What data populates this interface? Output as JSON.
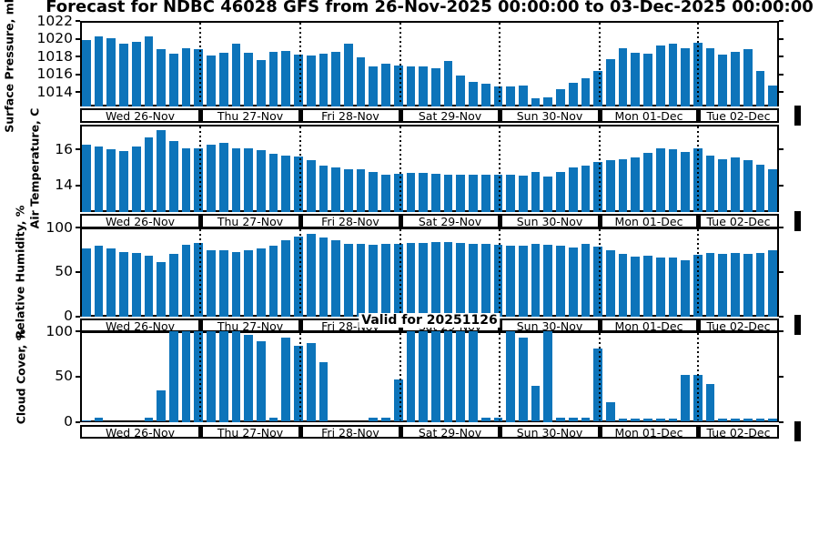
{
  "title": "Forecast for NDBC 46028 GFS from 26-Nov-2025 00:00:00 to 03-Dec-2025 00:00:00",
  "valid_label": "Valid for 20251126",
  "station": "NDBC 46028",
  "model": "GFS",
  "colors": {
    "bar": "#0d74ba",
    "axis": "#000000"
  },
  "day_labels": [
    "Wed 26-Nov",
    "Thu 27-Nov",
    "Fri 28-Nov",
    "Sat 29-Nov",
    "Sun 30-Nov",
    "Mon 01-Dec",
    "Tue 02-Dec"
  ],
  "chart_data": [
    {
      "type": "bar",
      "ylabel": "Surface Pressure, mb",
      "yticks": [
        1014,
        1016,
        1018,
        1020,
        1022
      ],
      "ylim": [
        1012.4,
        1022
      ],
      "categories": [
        "Wed 26-Nov",
        "Thu 27-Nov",
        "Fri 28-Nov",
        "Sat 29-Nov",
        "Sun 30-Nov",
        "Mon 01-Dec",
        "Tue 02-Dec"
      ],
      "values": [
        1019.9,
        1020.3,
        1020.1,
        1019.4,
        1019.7,
        1020.3,
        1018.8,
        1018.3,
        1018.9,
        1018.8,
        1018.1,
        1018.4,
        1019.4,
        1018.4,
        1017.6,
        1018.5,
        1018.6,
        1018.2,
        1018.1,
        1018.3,
        1018.5,
        1019.4,
        1017.9,
        1016.9,
        1017.2,
        1017.0,
        1016.9,
        1016.9,
        1016.7,
        1017.5,
        1015.9,
        1015.2,
        1015.0,
        1014.6,
        1014.6,
        1014.8,
        1013.3,
        1013.4,
        1014.3,
        1015.1,
        1015.6,
        1016.4,
        1017.7,
        1018.9,
        1018.4,
        1018.3,
        1019.2,
        1019.4,
        1018.9,
        1019.6,
        1018.9,
        1018.2,
        1018.5,
        1018.8,
        1016.4,
        1014.8
      ]
    },
    {
      "type": "bar",
      "ylabel": "Air Temperature, C",
      "yticks": [
        14,
        16
      ],
      "ylim": [
        12.48,
        17.42
      ],
      "categories": [
        "Wed 26-Nov",
        "Thu 27-Nov",
        "Fri 28-Nov",
        "Sat 29-Nov",
        "Sun 30-Nov",
        "Mon 01-Dec",
        "Tue 02-Dec"
      ],
      "values": [
        16.3,
        16.2,
        16.0,
        15.9,
        16.2,
        16.7,
        17.1,
        16.5,
        16.05,
        16.1,
        16.3,
        16.4,
        16.1,
        16.1,
        15.95,
        15.75,
        15.65,
        15.6,
        15.4,
        15.1,
        15.0,
        14.9,
        14.9,
        14.75,
        14.6,
        14.65,
        14.7,
        14.7,
        14.65,
        14.6,
        14.6,
        14.6,
        14.6,
        14.6,
        14.6,
        14.55,
        14.75,
        14.5,
        14.75,
        15.0,
        15.1,
        15.3,
        15.4,
        15.45,
        15.55,
        15.8,
        16.1,
        16.0,
        15.85,
        16.05,
        15.65,
        15.45,
        15.55,
        15.4,
        15.15,
        14.9
      ]
    },
    {
      "type": "bar",
      "ylabel": "Relative Humidity, %",
      "yticks": [
        0,
        50,
        100
      ],
      "ylim": [
        0,
        100
      ],
      "categories": [
        "Wed 26-Nov",
        "Thu 27-Nov",
        "Fri 28-Nov",
        "Sat 29-Nov",
        "Sun 30-Nov",
        "Mon 01-Dec",
        "Tue 02-Dec"
      ],
      "values": [
        76,
        79,
        76,
        72,
        71,
        68,
        61,
        70,
        81,
        83,
        74,
        74,
        72,
        74,
        76,
        79,
        86,
        90,
        93,
        89,
        86,
        82,
        82,
        81,
        82,
        82,
        83,
        83,
        84,
        84,
        83,
        82,
        82,
        81,
        80,
        80,
        82,
        81,
        79,
        77,
        82,
        78,
        74,
        70,
        67,
        68,
        66,
        66,
        63,
        69,
        71,
        70,
        71,
        70,
        71,
        74
      ]
    },
    {
      "type": "bar",
      "ylabel": "Cloud Cover, %",
      "yticks": [
        0,
        50,
        100
      ],
      "ylim": [
        0,
        100
      ],
      "categories": [
        "Wed 26-Nov",
        "Thu 27-Nov",
        "Fri 28-Nov",
        "Sat 29-Nov",
        "Sun 30-Nov",
        "Mon 01-Dec",
        "Tue 02-Dec"
      ],
      "values": [
        2,
        5,
        0,
        0,
        0,
        5,
        35,
        100,
        100,
        100,
        100,
        100,
        100,
        96,
        89,
        5,
        93,
        84,
        87,
        66,
        0,
        0,
        0,
        5,
        5,
        47,
        100,
        100,
        100,
        100,
        100,
        100,
        5,
        5,
        100,
        93,
        40,
        100,
        5,
        5,
        5,
        81,
        22,
        4,
        4,
        4,
        4,
        4,
        52,
        52,
        42,
        4,
        4,
        4,
        4,
        4
      ]
    }
  ]
}
